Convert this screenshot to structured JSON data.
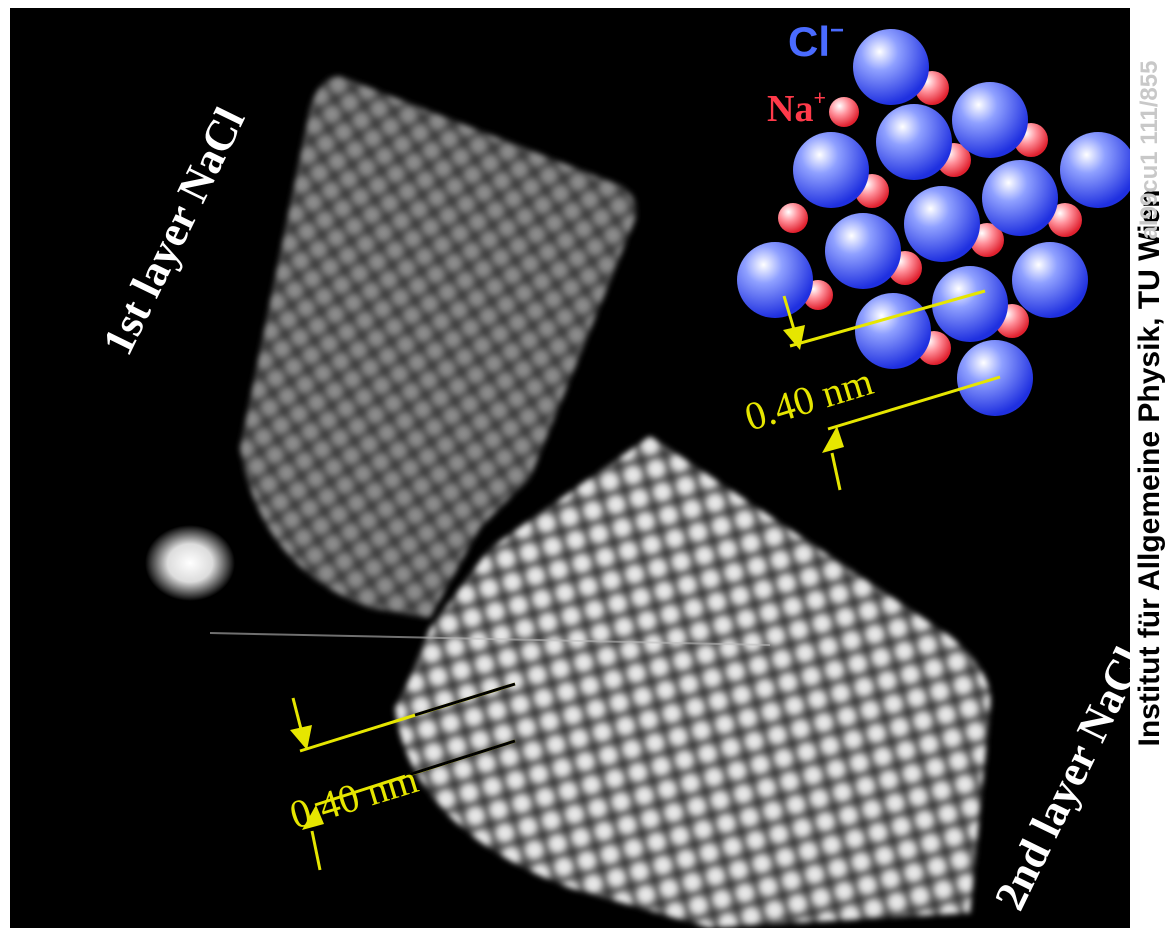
{
  "labels": {
    "first_layer": "1st layer NaCl",
    "second_layer": "2nd layer NaCl",
    "distance_inset": "0.40 nm",
    "distance_main": "0.40 nm",
    "chloride": "Cl",
    "chloride_charge": "−",
    "sodium": "Na",
    "sodium_charge": "+"
  },
  "credit": {
    "institute": "Institut für Allgemeine Physik, TU Wien",
    "image_id": "al99cu1 111/855"
  },
  "colors": {
    "background": "#000000",
    "annotation_yellow": "#e6e600",
    "chloride_blue": "#3e5bff",
    "sodium_red": "#ff4a55"
  }
}
